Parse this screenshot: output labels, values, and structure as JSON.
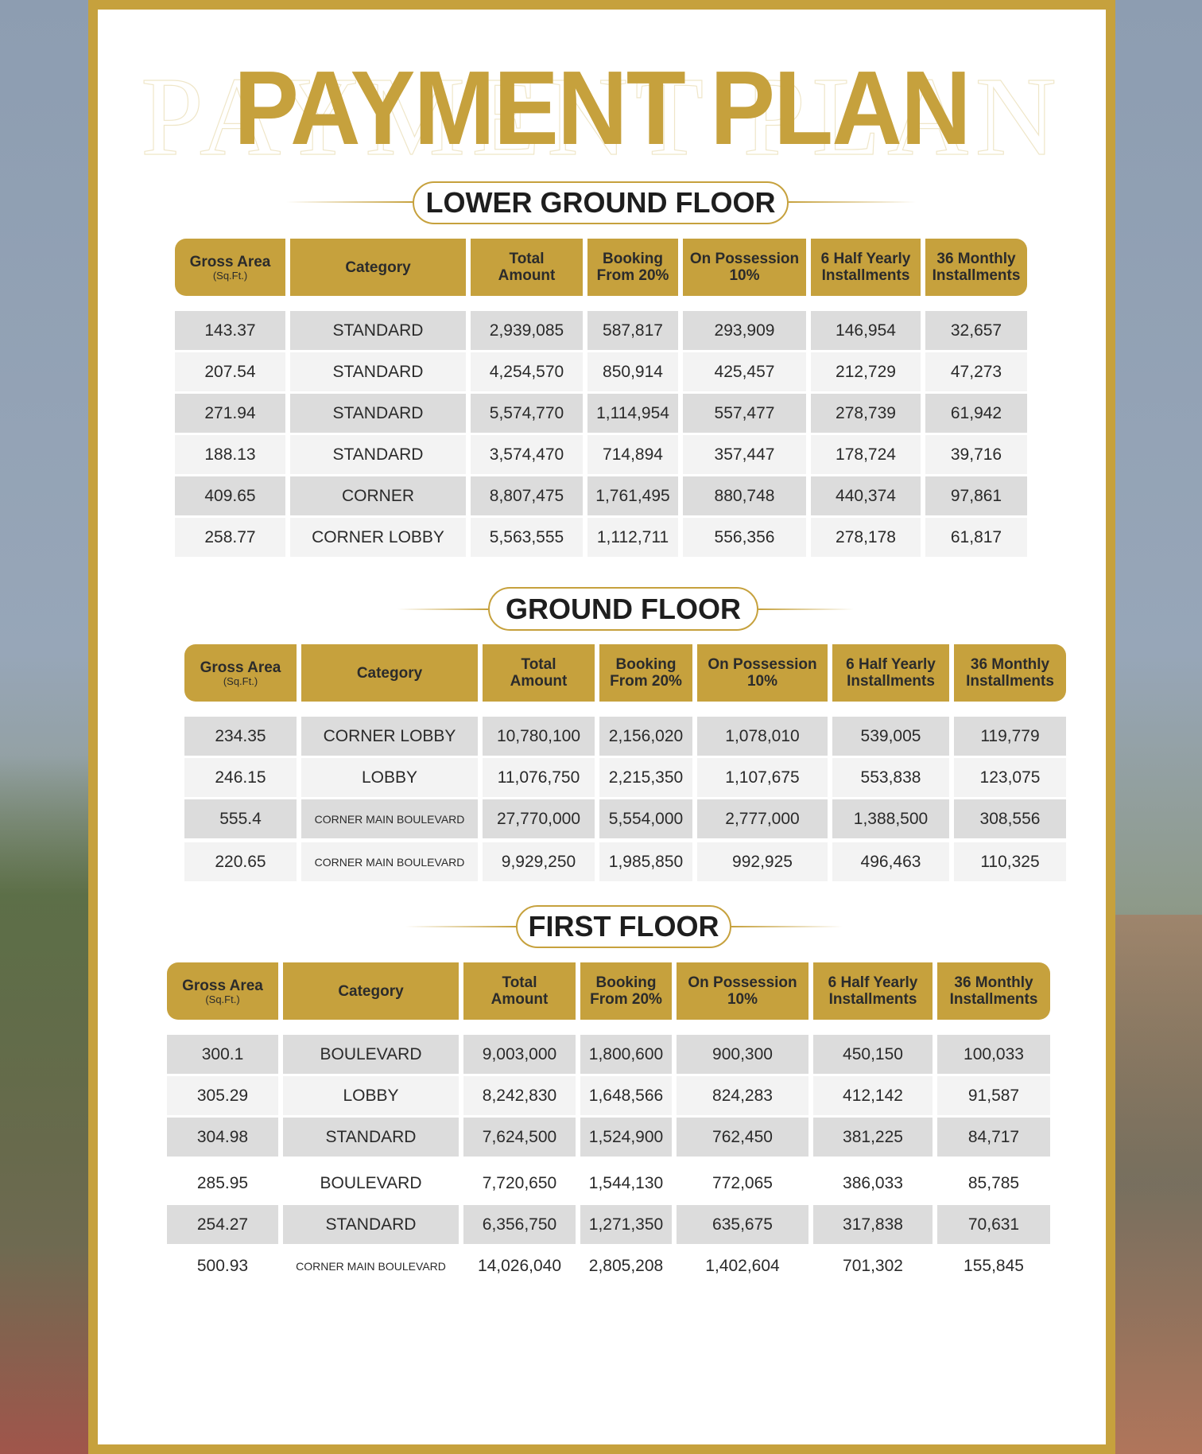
{
  "title": "PAYMENT PLAN",
  "colors": {
    "gold": "#c6a13d",
    "row_dark": "#dcdcdc",
    "row_light": "#f3f3f3"
  },
  "headers": {
    "gross_area": "Gross Area",
    "gross_area_unit": "(Sq.Ft.)",
    "category": "Category",
    "total_1": "Total",
    "total_2": "Amount",
    "booking_1": "Booking",
    "booking_2": "From 20%",
    "possession_1": "On Possession",
    "possession_2": "10%",
    "half_yearly_1": "6 Half Yearly",
    "half_yearly_2": "Installments",
    "monthly_1": "36 Monthly",
    "monthly_2": "Installments"
  },
  "tables": [
    {
      "heading": "LOWER GROUND FLOOR",
      "rows": [
        [
          "143.37",
          "STANDARD",
          "2,939,085",
          "587,817",
          "293,909",
          "146,954",
          "32,657"
        ],
        [
          "207.54",
          "STANDARD",
          "4,254,570",
          "850,914",
          "425,457",
          "212,729",
          "47,273"
        ],
        [
          "271.94",
          "STANDARD",
          "5,574,770",
          "1,114,954",
          "557,477",
          "278,739",
          "61,942"
        ],
        [
          "188.13",
          "STANDARD",
          "3,574,470",
          "714,894",
          "357,447",
          "178,724",
          "39,716"
        ],
        [
          "409.65",
          "CORNER",
          "8,807,475",
          "1,761,495",
          "880,748",
          "440,374",
          "97,861"
        ],
        [
          "258.77",
          "CORNER LOBBY",
          "5,563,555",
          "1,112,711",
          "556,356",
          "278,178",
          "61,817"
        ]
      ]
    },
    {
      "heading": "GROUND FLOOR",
      "rows": [
        [
          "234.35",
          "CORNER LOBBY",
          "10,780,100",
          "2,156,020",
          "1,078,010",
          "539,005",
          "119,779"
        ],
        [
          "246.15",
          "LOBBY",
          "11,076,750",
          "2,215,350",
          "1,107,675",
          "553,838",
          "123,075"
        ],
        [
          "555.4",
          "CORNER MAIN BOULEVARD",
          "27,770,000",
          "5,554,000",
          "2,777,000",
          "1,388,500",
          "308,556"
        ],
        [
          "220.65",
          "CORNER MAIN BOULEVARD",
          "9,929,250",
          "1,985,850",
          "992,925",
          "496,463",
          "110,325"
        ]
      ]
    },
    {
      "heading": "FIRST FLOOR",
      "rows": [
        [
          "300.1",
          "BOULEVARD",
          "9,003,000",
          "1,800,600",
          "900,300",
          "450,150",
          "100,033"
        ],
        [
          "305.29",
          "LOBBY",
          "8,242,830",
          "1,648,566",
          "824,283",
          "412,142",
          "91,587"
        ],
        [
          "304.98",
          "STANDARD",
          "7,624,500",
          "1,524,900",
          "762,450",
          "381,225",
          "84,717"
        ],
        [
          "285.95",
          "BOULEVARD",
          "7,720,650",
          "1,544,130",
          "772,065",
          "386,033",
          "85,785"
        ],
        [
          "254.27",
          "STANDARD",
          "6,356,750",
          "1,271,350",
          "635,675",
          "317,838",
          "70,631"
        ],
        [
          "500.93",
          "CORNER MAIN BOULEVARD",
          "14,026,040",
          "2,805,208",
          "1,402,604",
          "701,302",
          "155,845"
        ]
      ]
    }
  ]
}
